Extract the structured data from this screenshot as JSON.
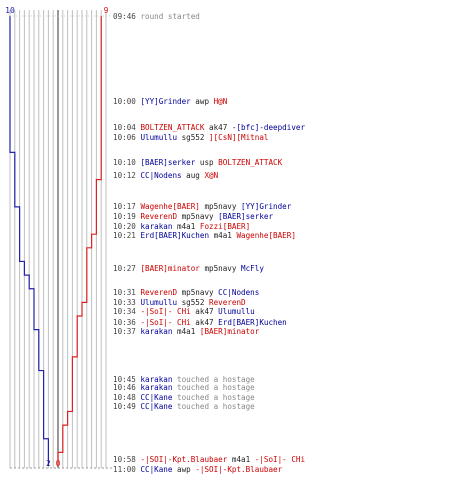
{
  "colors": {
    "ct": "#2222aa",
    "t": "#dd2222",
    "grid": "#bfbfbf",
    "center": "#555555",
    "ct_text": "#000099",
    "t_text": "#cc0000",
    "info_text": "#888888"
  },
  "chart_data": {
    "type": "line",
    "xlabel": "",
    "ylabel": "",
    "title": "",
    "blue_top_count": "10",
    "red_top_count": "9",
    "blue_end_count": "2",
    "red_end_count": "0",
    "series": [
      {
        "team": "ct",
        "points": [
          [
            0,
            10
          ],
          [
            4,
            10
          ],
          [
            10,
            9
          ],
          [
            14,
            8
          ],
          [
            18,
            7
          ],
          [
            19,
            6
          ],
          [
            20,
            5
          ],
          [
            23,
            4
          ],
          [
            26,
            3
          ],
          [
            31,
            2
          ],
          [
            33,
            2
          ]
        ]
      },
      {
        "team": "t",
        "points": [
          [
            0,
            9
          ],
          [
            10,
            9
          ],
          [
            12,
            8
          ],
          [
            16,
            7
          ],
          [
            17,
            6
          ],
          [
            21,
            5
          ],
          [
            22,
            4
          ],
          [
            25,
            3
          ],
          [
            29,
            2
          ],
          [
            30,
            1
          ],
          [
            32,
            0
          ],
          [
            33,
            0
          ]
        ]
      }
    ]
  },
  "events": [
    {
      "time": "09:46",
      "parts": [
        {
          "t": "round started",
          "c": "gray"
        }
      ]
    },
    {
      "time": "10:00",
      "parts": [
        {
          "t": "[YY]Grinder",
          "c": "blue"
        },
        {
          "t": " awp ",
          "c": "weapon"
        },
        {
          "t": "H@N",
          "c": "red"
        }
      ]
    },
    {
      "time": "10:04",
      "parts": [
        {
          "t": "BOLTZEN_ATTACK",
          "c": "red"
        },
        {
          "t": " ak47 ",
          "c": "weapon"
        },
        {
          "t": "-[bfc]-deepdiver",
          "c": "blue"
        }
      ]
    },
    {
      "time": "10:06",
      "parts": [
        {
          "t": "Ulumullu",
          "c": "blue"
        },
        {
          "t": " sg552 ",
          "c": "weapon"
        },
        {
          "t": "][CsN][Mitnal",
          "c": "red"
        }
      ]
    },
    {
      "time": "10:10",
      "parts": [
        {
          "t": "[BAER]serker",
          "c": "blue"
        },
        {
          "t": " usp ",
          "c": "weapon"
        },
        {
          "t": "BOLTZEN_ATTACK",
          "c": "red"
        }
      ]
    },
    {
      "time": "10:12",
      "parts": [
        {
          "t": "CC|Nodens",
          "c": "blue"
        },
        {
          "t": " aug ",
          "c": "weapon"
        },
        {
          "t": "X@N",
          "c": "red"
        }
      ]
    },
    {
      "time": "10:17",
      "parts": [
        {
          "t": "Wagenhe[BAER]",
          "c": "red"
        },
        {
          "t": " mp5navy ",
          "c": "weapon"
        },
        {
          "t": "[YY]Grinder",
          "c": "blue"
        }
      ]
    },
    {
      "time": "10:19",
      "parts": [
        {
          "t": "ReverenD",
          "c": "red"
        },
        {
          "t": " mp5navy ",
          "c": "weapon"
        },
        {
          "t": "[BAER]serker",
          "c": "blue"
        }
      ]
    },
    {
      "time": "10:20",
      "parts": [
        {
          "t": "karakan",
          "c": "blue"
        },
        {
          "t": " m4a1 ",
          "c": "weapon"
        },
        {
          "t": "Fozzi[BAER]",
          "c": "red"
        }
      ]
    },
    {
      "time": "10:21",
      "parts": [
        {
          "t": "Erd[BAER]Kuchen",
          "c": "blue"
        },
        {
          "t": " m4a1 ",
          "c": "weapon"
        },
        {
          "t": "Wagenhe[BAER]",
          "c": "red"
        }
      ]
    },
    {
      "time": "10:27",
      "parts": [
        {
          "t": "[BAER]minator",
          "c": "red"
        },
        {
          "t": " mp5navy ",
          "c": "weapon"
        },
        {
          "t": "McFly",
          "c": "blue"
        }
      ]
    },
    {
      "time": "10:31",
      "parts": [
        {
          "t": "ReverenD",
          "c": "red"
        },
        {
          "t": " mp5navy ",
          "c": "weapon"
        },
        {
          "t": "CC|Nodens",
          "c": "blue"
        }
      ]
    },
    {
      "time": "10:33",
      "parts": [
        {
          "t": "Ulumullu",
          "c": "blue"
        },
        {
          "t": " sg552 ",
          "c": "weapon"
        },
        {
          "t": "ReverenD",
          "c": "red"
        }
      ]
    },
    {
      "time": "10:34",
      "parts": [
        {
          "t": "-|SoI|- CHi",
          "c": "red"
        },
        {
          "t": " ak47 ",
          "c": "weapon"
        },
        {
          "t": "Ulumullu",
          "c": "blue"
        }
      ]
    },
    {
      "time": "10:36",
      "parts": [
        {
          "t": "-|SoI|- CHi",
          "c": "red"
        },
        {
          "t": " ak47 ",
          "c": "weapon"
        },
        {
          "t": "Erd[BAER]Kuchen",
          "c": "blue"
        }
      ]
    },
    {
      "time": "10:37",
      "parts": [
        {
          "t": "karakan",
          "c": "blue"
        },
        {
          "t": " m4a1 ",
          "c": "weapon"
        },
        {
          "t": "[BAER]minator",
          "c": "red"
        }
      ]
    },
    {
      "time": "10:45",
      "parts": [
        {
          "t": "karakan",
          "c": "blue"
        },
        {
          "t": " touched a hostage",
          "c": "gray"
        }
      ]
    },
    {
      "time": "10:46",
      "parts": [
        {
          "t": "karakan",
          "c": "blue"
        },
        {
          "t": " touched a hostage",
          "c": "gray"
        }
      ]
    },
    {
      "time": "10:48",
      "parts": [
        {
          "t": "CC|Kane",
          "c": "blue"
        },
        {
          "t": " touched a hostage",
          "c": "gray"
        }
      ]
    },
    {
      "time": "10:49",
      "parts": [
        {
          "t": "CC|Kane",
          "c": "blue"
        },
        {
          "t": " touched a hostage",
          "c": "gray"
        }
      ]
    },
    {
      "time": "10:58",
      "parts": [
        {
          "t": "-|SOI|-Kpt.Blaubaer",
          "c": "red"
        },
        {
          "t": " m4a1 ",
          "c": "weapon"
        },
        {
          "t": "-|SoI|- CHi",
          "c": "red"
        }
      ]
    },
    {
      "time": "11:00",
      "parts": [
        {
          "t": "CC|Kane",
          "c": "blue"
        },
        {
          "t": " awp ",
          "c": "weapon"
        },
        {
          "t": "-|SOI|-Kpt.Blaubaer",
          "c": "red"
        }
      ]
    }
  ]
}
